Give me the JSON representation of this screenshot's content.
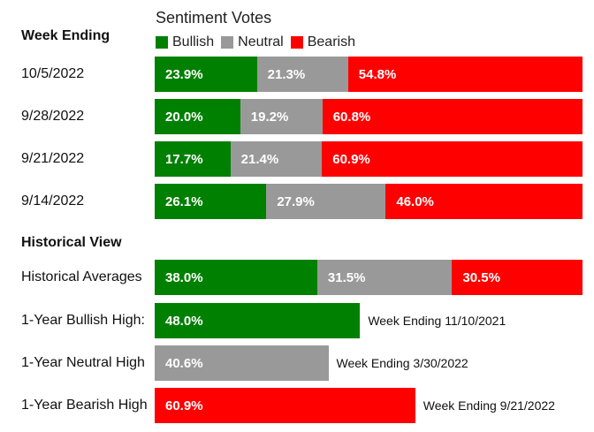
{
  "title": "Sentiment Votes",
  "week_header": "Week Ending",
  "historical_header": "Historical View",
  "legend": [
    {
      "name": "Bullish",
      "color": "#008000"
    },
    {
      "name": "Neutral",
      "color": "#999999"
    },
    {
      "name": "Bearish",
      "color": "#ff0000"
    }
  ],
  "chart_data": [
    {
      "type": "bar",
      "stacked": true,
      "orientation": "horizontal",
      "title": "Sentiment Votes",
      "categories": [
        "10/5/2022",
        "9/28/2022",
        "9/21/2022",
        "9/14/2022",
        "Historical Averages"
      ],
      "series": [
        {
          "name": "Bullish",
          "color": "#008000",
          "values": [
            23.9,
            20.0,
            17.7,
            26.1,
            38.0
          ],
          "labels": [
            "23.9%",
            "20.0%",
            "17.7%",
            "26.1%",
            "38.0%"
          ]
        },
        {
          "name": "Neutral",
          "color": "#999999",
          "values": [
            21.3,
            19.2,
            21.4,
            27.9,
            31.5
          ],
          "labels": [
            "21.3%",
            "19.2%",
            "21.4%",
            "27.9%",
            "31.5%"
          ]
        },
        {
          "name": "Bearish",
          "color": "#ff0000",
          "values": [
            54.8,
            60.8,
            60.9,
            46.0,
            30.5
          ],
          "labels": [
            "54.8%",
            "60.8%",
            "60.9%",
            "46.0%",
            "30.5%"
          ]
        }
      ],
      "xlim": [
        0,
        100
      ],
      "legend_position": "top"
    },
    {
      "type": "bar",
      "orientation": "horizontal",
      "categories": [
        "1-Year Bullish High:",
        "1-Year Neutral High",
        "1-Year Bearish High"
      ],
      "values": [
        48.0,
        40.6,
        60.9
      ],
      "labels": [
        "48.0%",
        "40.6%",
        "60.9%"
      ],
      "colors": [
        "#008000",
        "#999999",
        "#ff0000"
      ],
      "annotations": [
        "Week Ending 11/10/2021",
        "Week Ending 3/30/2022",
        "Week Ending 9/21/2022"
      ],
      "xlim": [
        0,
        100
      ]
    }
  ]
}
